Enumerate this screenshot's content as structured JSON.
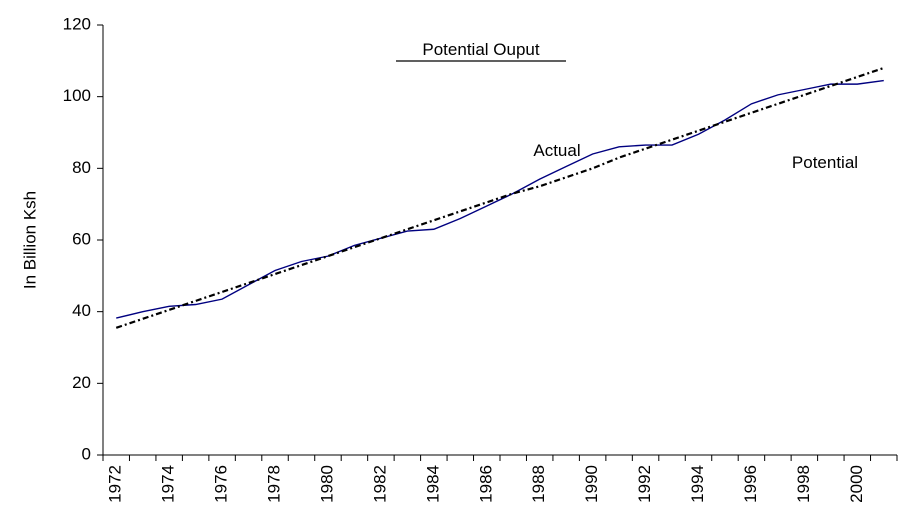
{
  "chart_data": {
    "type": "line",
    "title": "Potential Ouput",
    "y_label": "In Billion Ksh",
    "annotations": [
      "Actual",
      "Potential"
    ],
    "categories": [
      "1972",
      null,
      "1974",
      null,
      "1976",
      null,
      "1978",
      null,
      "1980",
      null,
      "1982",
      null,
      "1984",
      null,
      "1986",
      null,
      "1988",
      null,
      "1990",
      null,
      "1992",
      null,
      "1994",
      null,
      "1996",
      null,
      "1998",
      null,
      "2000",
      null
    ],
    "series": [
      {
        "name": "Actual",
        "color": "#000080",
        "dashed": false,
        "values": [
          38.2,
          40,
          41.5,
          42,
          43.5,
          47.5,
          51.5,
          54,
          55.5,
          58.5,
          60.5,
          62.5,
          63,
          66,
          69.5,
          73,
          77,
          80.5,
          84,
          86,
          86.5,
          86.5,
          89.5,
          93.5,
          98,
          100.5,
          102,
          103.5,
          103.5,
          104.5
        ]
      },
      {
        "name": "Potential",
        "color": "#000000",
        "dashed": true,
        "values": [
          35.5,
          38,
          40.5,
          43,
          45.5,
          48,
          50.5,
          53,
          55.5,
          58,
          60.5,
          63,
          65.5,
          68,
          70.5,
          73,
          75,
          77.5,
          80,
          83,
          85.5,
          88,
          90.5,
          93,
          95.5,
          98,
          100.5,
          103,
          105.5,
          108
        ]
      }
    ],
    "ylim": [
      0,
      120
    ],
    "yticks": [
      0,
      20,
      40,
      60,
      80,
      100,
      120
    ],
    "grid": false
  }
}
